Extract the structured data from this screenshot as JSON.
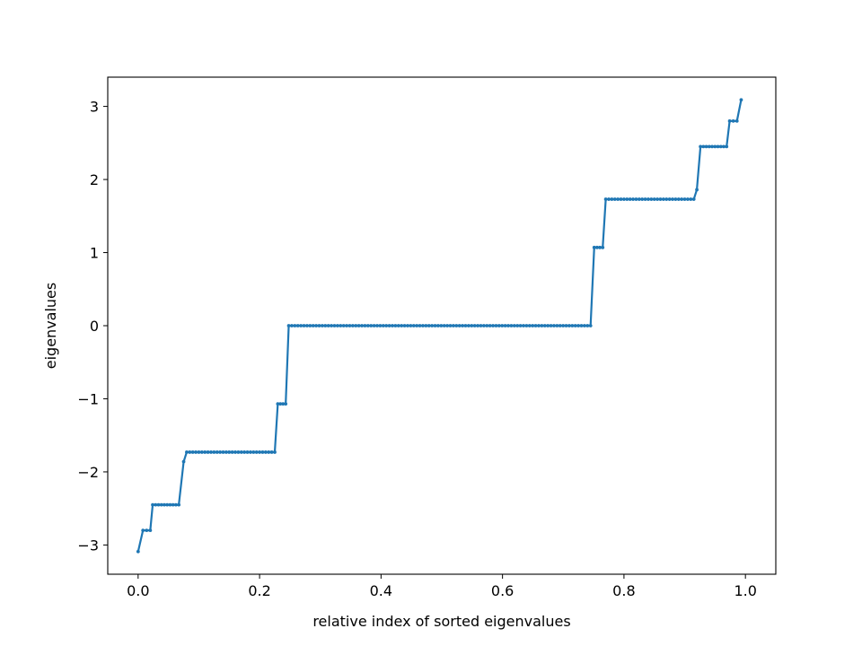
{
  "chart_data": {
    "type": "line",
    "title": "",
    "xlabel": "relative index of sorted eigenvalues",
    "ylabel": "eigenvalues",
    "xlim": [
      -0.05,
      1.05
    ],
    "ylim": [
      -3.4,
      3.4
    ],
    "xticks": [
      0.0,
      0.2,
      0.4,
      0.6,
      0.8,
      1.0
    ],
    "xtick_labels": [
      "0.0",
      "0.2",
      "0.4",
      "0.6",
      "0.8",
      "1.0"
    ],
    "yticks": [
      -3,
      -2,
      -1,
      0,
      1,
      2,
      3
    ],
    "ytick_labels": [
      "−3",
      "−2",
      "−1",
      "0",
      "1",
      "2",
      "3"
    ],
    "grid": false,
    "color": "#1f77b4",
    "marker": "dot",
    "segments": [
      {
        "x_start": 0.0,
        "x_end": 0.0,
        "y": -3.09
      },
      {
        "x_start": 0.008,
        "x_end": 0.02,
        "y": -2.8
      },
      {
        "x_start": 0.024,
        "x_end": 0.067,
        "y": -2.45
      },
      {
        "x_start": 0.075,
        "x_end": 0.075,
        "y": -1.86
      },
      {
        "x_start": 0.08,
        "x_end": 0.225,
        "y": -1.73
      },
      {
        "x_start": 0.23,
        "x_end": 0.243,
        "y": -1.07
      },
      {
        "x_start": 0.248,
        "x_end": 0.745,
        "y": 0.0
      },
      {
        "x_start": 0.751,
        "x_end": 0.765,
        "y": 1.07
      },
      {
        "x_start": 0.77,
        "x_end": 0.915,
        "y": 1.73
      },
      {
        "x_start": 0.92,
        "x_end": 0.92,
        "y": 1.86
      },
      {
        "x_start": 0.926,
        "x_end": 0.969,
        "y": 2.45
      },
      {
        "x_start": 0.974,
        "x_end": 0.986,
        "y": 2.8
      },
      {
        "x_start": 0.993,
        "x_end": 0.993,
        "y": 3.09
      }
    ]
  }
}
